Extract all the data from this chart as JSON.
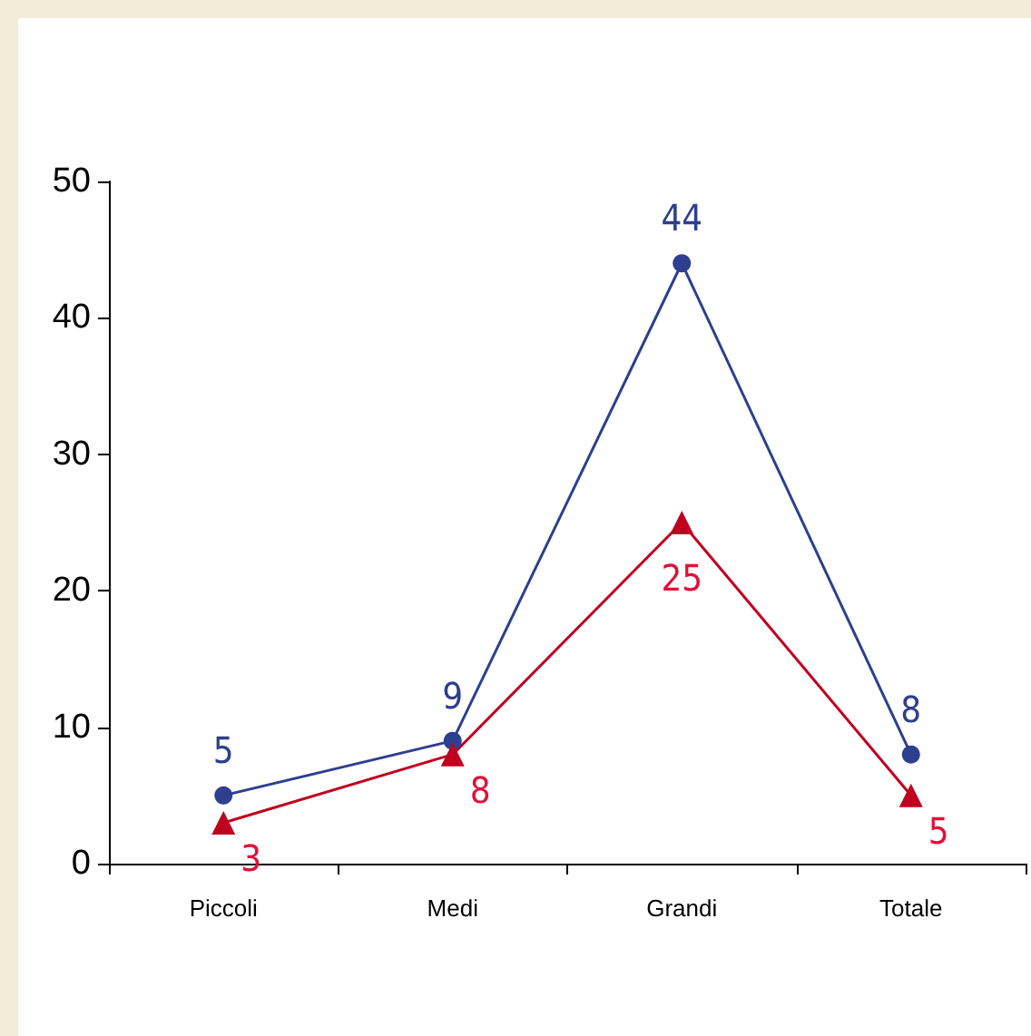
{
  "chart_data": {
    "type": "line",
    "categories": [
      "Piccoli",
      "Medi",
      "Grandi",
      "Totale"
    ],
    "series": [
      {
        "color": "#2e3f8f",
        "values": [
          5,
          9,
          44,
          8
        ],
        "marker": "circle"
      },
      {
        "color": "#c0001e",
        "values": [
          3,
          8,
          25,
          5
        ],
        "marker": "triangle"
      }
    ],
    "ylim": [
      0,
      50
    ],
    "yticks": [
      0,
      10,
      20,
      30,
      40,
      50
    ],
    "data_labels": true,
    "grid": false
  }
}
